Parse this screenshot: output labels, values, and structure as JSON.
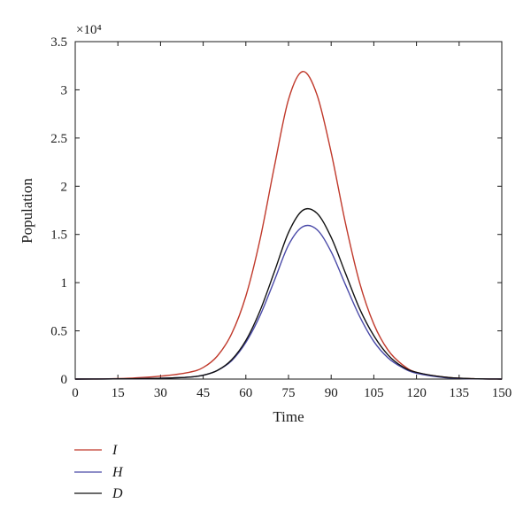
{
  "chart_data": {
    "type": "line",
    "title": "",
    "xlabel": "Time",
    "ylabel": "Population",
    "y_multiplier_label": "×10⁴",
    "xlim": [
      0,
      150
    ],
    "ylim": [
      0,
      3.5
    ],
    "x_ticks": [
      0,
      15,
      30,
      45,
      60,
      75,
      90,
      105,
      120,
      135,
      150
    ],
    "y_ticks": [
      0,
      0.5,
      1,
      1.5,
      2,
      2.5,
      3,
      3.5
    ],
    "y_tick_labels": [
      "0",
      "0.5",
      "1",
      "1.5",
      "2",
      "2.5",
      "3",
      "3.5"
    ],
    "grid": false,
    "legend_position": "bottom-left",
    "x": [
      0,
      10,
      20,
      30,
      40,
      45,
      50,
      55,
      60,
      65,
      70,
      75,
      80,
      85,
      90,
      95,
      100,
      105,
      110,
      115,
      120,
      130,
      140,
      150
    ],
    "series": [
      {
        "name": "I",
        "color": "#c0392b",
        "values": [
          0.0,
          0.002,
          0.01,
          0.03,
          0.07,
          0.12,
          0.24,
          0.47,
          0.86,
          1.45,
          2.2,
          2.9,
          3.19,
          2.95,
          2.35,
          1.62,
          1.0,
          0.57,
          0.3,
          0.15,
          0.07,
          0.02,
          0.004,
          0.0
        ]
      },
      {
        "name": "H",
        "color": "#4a4aa8",
        "values": [
          0.0,
          0.001,
          0.003,
          0.008,
          0.02,
          0.04,
          0.09,
          0.19,
          0.38,
          0.66,
          1.02,
          1.39,
          1.58,
          1.55,
          1.32,
          0.98,
          0.65,
          0.39,
          0.22,
          0.12,
          0.06,
          0.015,
          0.003,
          0.0
        ]
      },
      {
        "name": "D",
        "color": "#111111",
        "values": [
          0.0,
          0.001,
          0.003,
          0.008,
          0.02,
          0.04,
          0.09,
          0.2,
          0.4,
          0.71,
          1.11,
          1.52,
          1.75,
          1.72,
          1.47,
          1.1,
          0.73,
          0.45,
          0.25,
          0.13,
          0.07,
          0.02,
          0.004,
          0.0
        ]
      }
    ]
  }
}
